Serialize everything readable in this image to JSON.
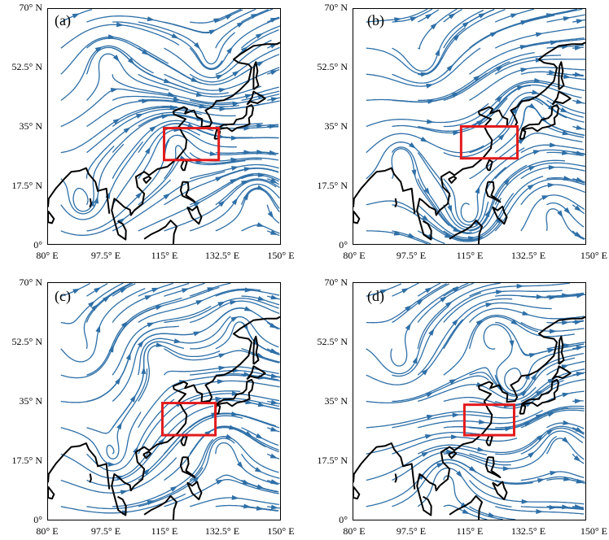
{
  "panels": [
    {
      "id": "a",
      "label": "(a)",
      "box": {
        "lon": [
          115,
          131.5
        ],
        "lat": [
          25,
          34.5
        ]
      }
    },
    {
      "id": "b",
      "label": "(b)",
      "box": {
        "lon": [
          112.5,
          129.5
        ],
        "lat": [
          25.5,
          35
        ]
      }
    },
    {
      "id": "c",
      "label": "(c)",
      "box": {
        "lon": [
          114.5,
          130.5
        ],
        "lat": [
          25,
          34.5
        ]
      }
    },
    {
      "id": "d",
      "label": "(d)",
      "box": {
        "lon": [
          113.5,
          128.5
        ],
        "lat": [
          25,
          34
        ]
      }
    }
  ],
  "axes": {
    "x_ticks": [
      "80° E",
      "97.5° E",
      "115° E",
      "132.5° E",
      "150° E"
    ],
    "y_ticks": [
      "0°",
      "17.5° N",
      "35° N",
      "52.5° N",
      "70° N"
    ],
    "lon_range": [
      80,
      150
    ],
    "lat_range": [
      0,
      70
    ]
  },
  "colors": {
    "streamline": "#2e6fa7",
    "coastline": "#000000",
    "region_box": "#e31a1c"
  }
}
